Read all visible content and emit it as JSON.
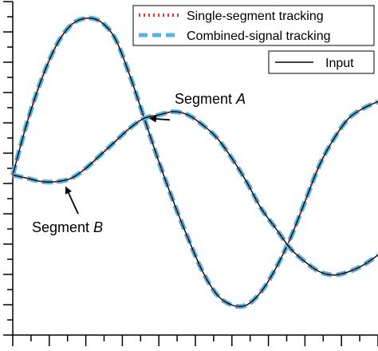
{
  "chart_data": {
    "type": "line",
    "title": "",
    "xlabel": "",
    "ylabel": "",
    "grid": false,
    "legend_placement": "top-right",
    "xlim": [
      0,
      1
    ],
    "ylim": [
      0,
      1
    ],
    "series": [
      {
        "key": "input_a",
        "x": [
          0.0,
          0.04,
          0.08,
          0.12,
          0.16,
          0.2,
          0.24,
          0.28,
          0.32,
          0.36,
          0.4,
          0.44,
          0.48,
          0.52,
          0.56,
          0.6,
          0.64,
          0.68,
          0.72,
          0.76,
          0.8,
          0.84,
          0.88,
          0.92,
          0.96,
          1.0
        ],
        "y": [
          0.48,
          0.64,
          0.77,
          0.87,
          0.93,
          0.95,
          0.94,
          0.89,
          0.78,
          0.65,
          0.52,
          0.4,
          0.29,
          0.19,
          0.12,
          0.09,
          0.09,
          0.13,
          0.2,
          0.29,
          0.4,
          0.51,
          0.59,
          0.65,
          0.68,
          0.7
        ]
      },
      {
        "key": "input_b",
        "x": [
          0.0,
          0.04,
          0.08,
          0.12,
          0.16,
          0.2,
          0.24,
          0.28,
          0.32,
          0.36,
          0.4,
          0.44,
          0.48,
          0.52,
          0.56,
          0.6,
          0.64,
          0.68,
          0.72,
          0.76,
          0.8,
          0.84,
          0.88,
          0.92,
          0.96,
          1.0
        ],
        "y": [
          0.48,
          0.47,
          0.46,
          0.46,
          0.47,
          0.5,
          0.54,
          0.58,
          0.62,
          0.65,
          0.66,
          0.67,
          0.66,
          0.63,
          0.59,
          0.53,
          0.46,
          0.38,
          0.32,
          0.26,
          0.22,
          0.19,
          0.18,
          0.19,
          0.21,
          0.24
        ]
      }
    ],
    "legend": [
      {
        "label": "Single-segment tracking",
        "color": "#e8322d",
        "style": "dotted"
      },
      {
        "label": "Combined-signal tracking",
        "color": "#55b5e0",
        "style": "dashed"
      },
      {
        "label": "Input",
        "color": "#000000",
        "style": "solid"
      }
    ],
    "annotations": [
      {
        "label": "Segment",
        "italic": "A",
        "target_series": "input_a",
        "target_x": 0.36
      },
      {
        "label": "Segment",
        "italic": "B",
        "target_series": "input_b",
        "target_x": 0.14
      }
    ],
    "colors": {
      "single_segment": "#e8322d",
      "combined_signal": "#55b5e0",
      "input": "#000000",
      "axes": "#000000"
    }
  }
}
